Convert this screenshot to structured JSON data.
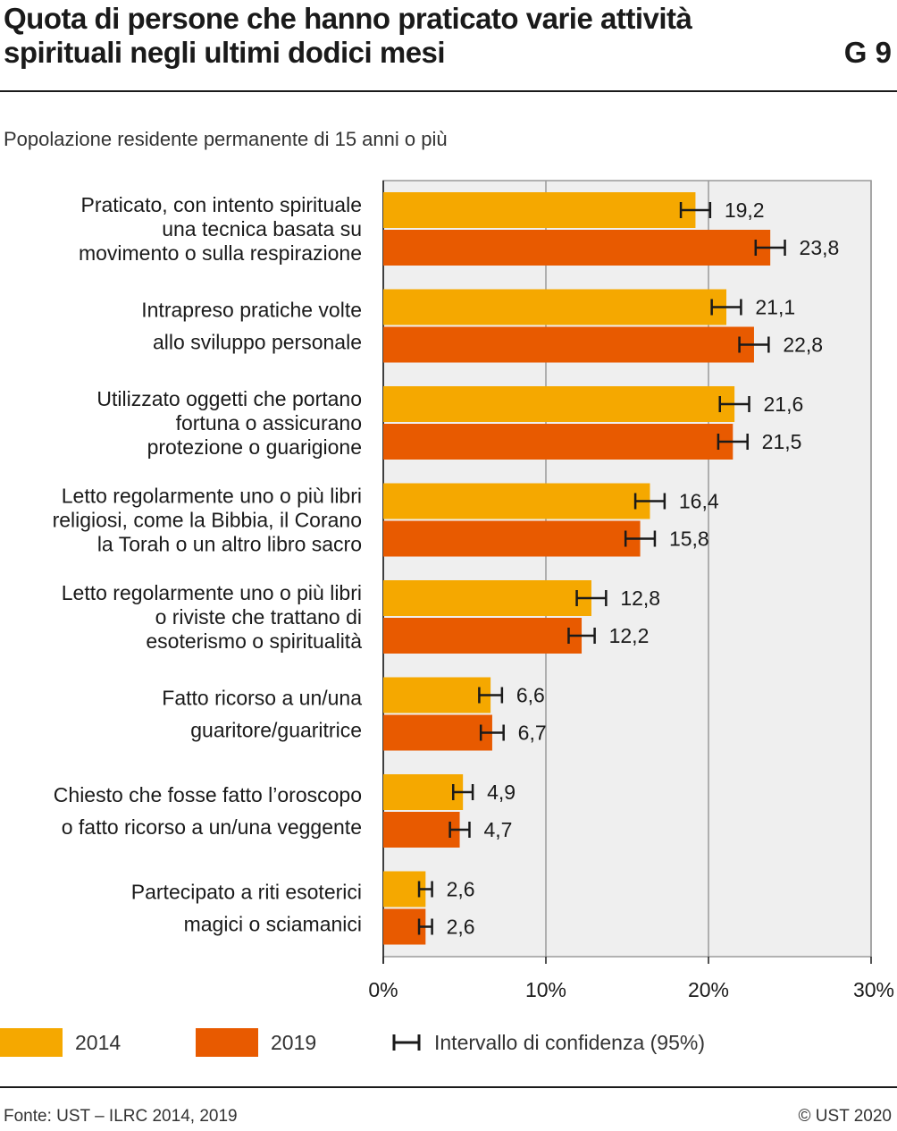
{
  "header": {
    "title_line1": "Quota di persone che hanno praticato varie attività",
    "title_line2": "spirituali negli ultimi dodici mesi",
    "graphic_number": "G 9",
    "subtitle": "Popolazione residente permanente di 15 anni o più"
  },
  "chart_data": {
    "type": "bar",
    "orientation": "horizontal",
    "title": "Quota di persone che hanno praticato varie attività spirituali negli ultimi dodici mesi",
    "subtitle": "Popolazione residente permanente di 15 anni o più",
    "xlim": [
      0,
      30
    ],
    "x_ticks": [
      "0%",
      "10%",
      "20%",
      "30%"
    ],
    "grid": true,
    "legend_position": "bottom",
    "categories": [
      [
        "Praticato, con intento spirituale",
        "una tecnica basata su",
        "movimento o sulla respirazione"
      ],
      [
        "Intrapreso pratiche volte",
        "allo sviluppo personale"
      ],
      [
        "Utilizzato oggetti che portano",
        "fortuna o assicurano",
        "protezione o guarigione"
      ],
      [
        "Letto regolarmente uno o più libri",
        "religiosi, come la Bibbia, il Corano",
        "la Torah o un altro libro sacro"
      ],
      [
        "Letto regolarmente uno o più libri",
        "o riviste che trattano di",
        "esoterismo o spiritualità"
      ],
      [
        "Fatto ricorso a un/una",
        "guaritore/guaritrice"
      ],
      [
        "Chiesto che fosse fatto l’oroscopo",
        "o fatto ricorso a un/una veggente"
      ],
      [
        "Partecipato a riti esoterici",
        "magici o sciamanici"
      ]
    ],
    "series": [
      {
        "name": "2014",
        "color": "#f5a800",
        "values": [
          19.2,
          21.1,
          21.6,
          16.4,
          12.8,
          6.6,
          4.9,
          2.6
        ],
        "labels": [
          "19,2",
          "21,1",
          "21,6",
          "16,4",
          "12,8",
          "6,6",
          "4,9",
          "2,6"
        ],
        "ci_low": [
          18.3,
          20.2,
          20.7,
          15.5,
          11.9,
          5.9,
          4.3,
          2.2
        ],
        "ci_high": [
          20.1,
          22.0,
          22.5,
          17.3,
          13.7,
          7.3,
          5.5,
          3.0
        ]
      },
      {
        "name": "2019",
        "color": "#e85a00",
        "values": [
          23.8,
          22.8,
          21.5,
          15.8,
          12.2,
          6.7,
          4.7,
          2.6
        ],
        "labels": [
          "23,8",
          "22,8",
          "21,5",
          "15,8",
          "12,2",
          "6,7",
          "4,7",
          "2,6"
        ],
        "ci_low": [
          22.9,
          21.9,
          20.6,
          14.9,
          11.4,
          6.0,
          4.1,
          2.2
        ],
        "ci_high": [
          24.7,
          23.7,
          22.4,
          16.7,
          13.0,
          7.4,
          5.3,
          3.0
        ]
      }
    ]
  },
  "legend": {
    "s2014": "2014",
    "s2019": "2019",
    "ci": "Intervallo di confidenza (95%)"
  },
  "footer": {
    "source": "Fonte: UST – ILRC 2014, 2019",
    "copyright": "© UST 2020"
  }
}
